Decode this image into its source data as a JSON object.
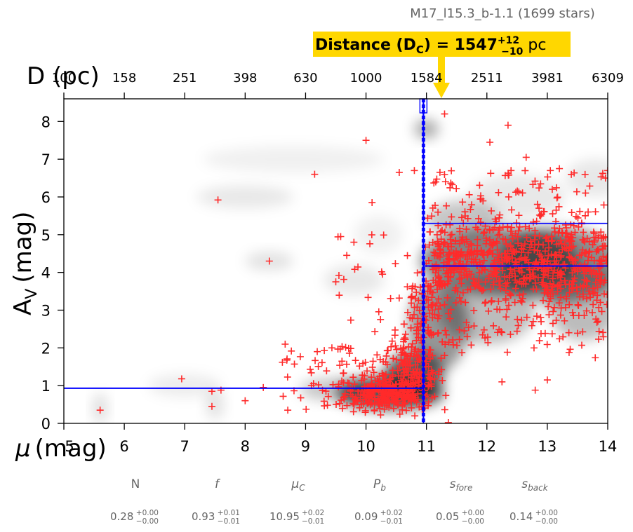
{
  "chart_data": {
    "type": "scatter",
    "title": "M17_l15.3_b-1.1 (1699 stars)",
    "xlabel_symbol": "μ",
    "xlabel_unit": "(mag)",
    "ylabel_main": "A",
    "ylabel_sub": "V",
    "ylabel_unit": "(mag)",
    "top_label": "D (pc)",
    "xlim": [
      5,
      14
    ],
    "ylim": [
      0,
      8.6
    ],
    "x_ticks": [
      "5",
      "6",
      "7",
      "8",
      "9",
      "10",
      "11",
      "12",
      "13",
      "14"
    ],
    "y_ticks": [
      "0",
      "1",
      "2",
      "3",
      "4",
      "5",
      "6",
      "7",
      "8"
    ],
    "top_ticks": [
      {
        "mu": 5,
        "label": "100"
      },
      {
        "mu": 6,
        "label": "158"
      },
      {
        "mu": 7,
        "label": "251"
      },
      {
        "mu": 8,
        "label": "398"
      },
      {
        "mu": 9,
        "label": "630"
      },
      {
        "mu": 10,
        "label": "1000"
      },
      {
        "mu": 11,
        "label": "1584"
      },
      {
        "mu": 12,
        "label": "2511"
      },
      {
        "mu": 13,
        "label": "3981"
      },
      {
        "mu": 14,
        "label": "6309"
      }
    ],
    "cloud_distance_mu": 10.95,
    "cloud_mu_err": [
      10.93,
      10.97
    ],
    "foreground_av": 0.93,
    "background_av": 4.17,
    "background_av_upper": 5.3,
    "distance_annotation": {
      "prefix": "Distance (D",
      "sub": "C",
      "mid": ") = 1547",
      "sup": "+12",
      "sub2": "−10",
      "unit": " pc"
    },
    "parameters": [
      {
        "name": "N",
        "value": "0.28",
        "plus": "+0.00",
        "minus": "−0.00"
      },
      {
        "name": "f",
        "value": "0.93",
        "plus": "+0.01",
        "minus": "−0.01"
      },
      {
        "name": "μ",
        "name_sub": "C",
        "value": "10.95",
        "plus": "+0.02",
        "minus": "−0.01"
      },
      {
        "name": "P",
        "name_sub": "b",
        "value": "0.09",
        "plus": "+0.02",
        "minus": "−0.01"
      },
      {
        "name": "s",
        "name_sub": "fore",
        "value": "0.05",
        "plus": "+0.00",
        "minus": "−0.00"
      },
      {
        "name": "s",
        "name_sub": "back",
        "value": "0.14",
        "plus": "+0.00",
        "minus": "−0.00"
      }
    ],
    "stars_shown": 1699,
    "colors": {
      "stars": "#ff2a2a",
      "fit": "#0000ff",
      "highlight": "#ffd700",
      "text_gray": "#666666"
    }
  }
}
